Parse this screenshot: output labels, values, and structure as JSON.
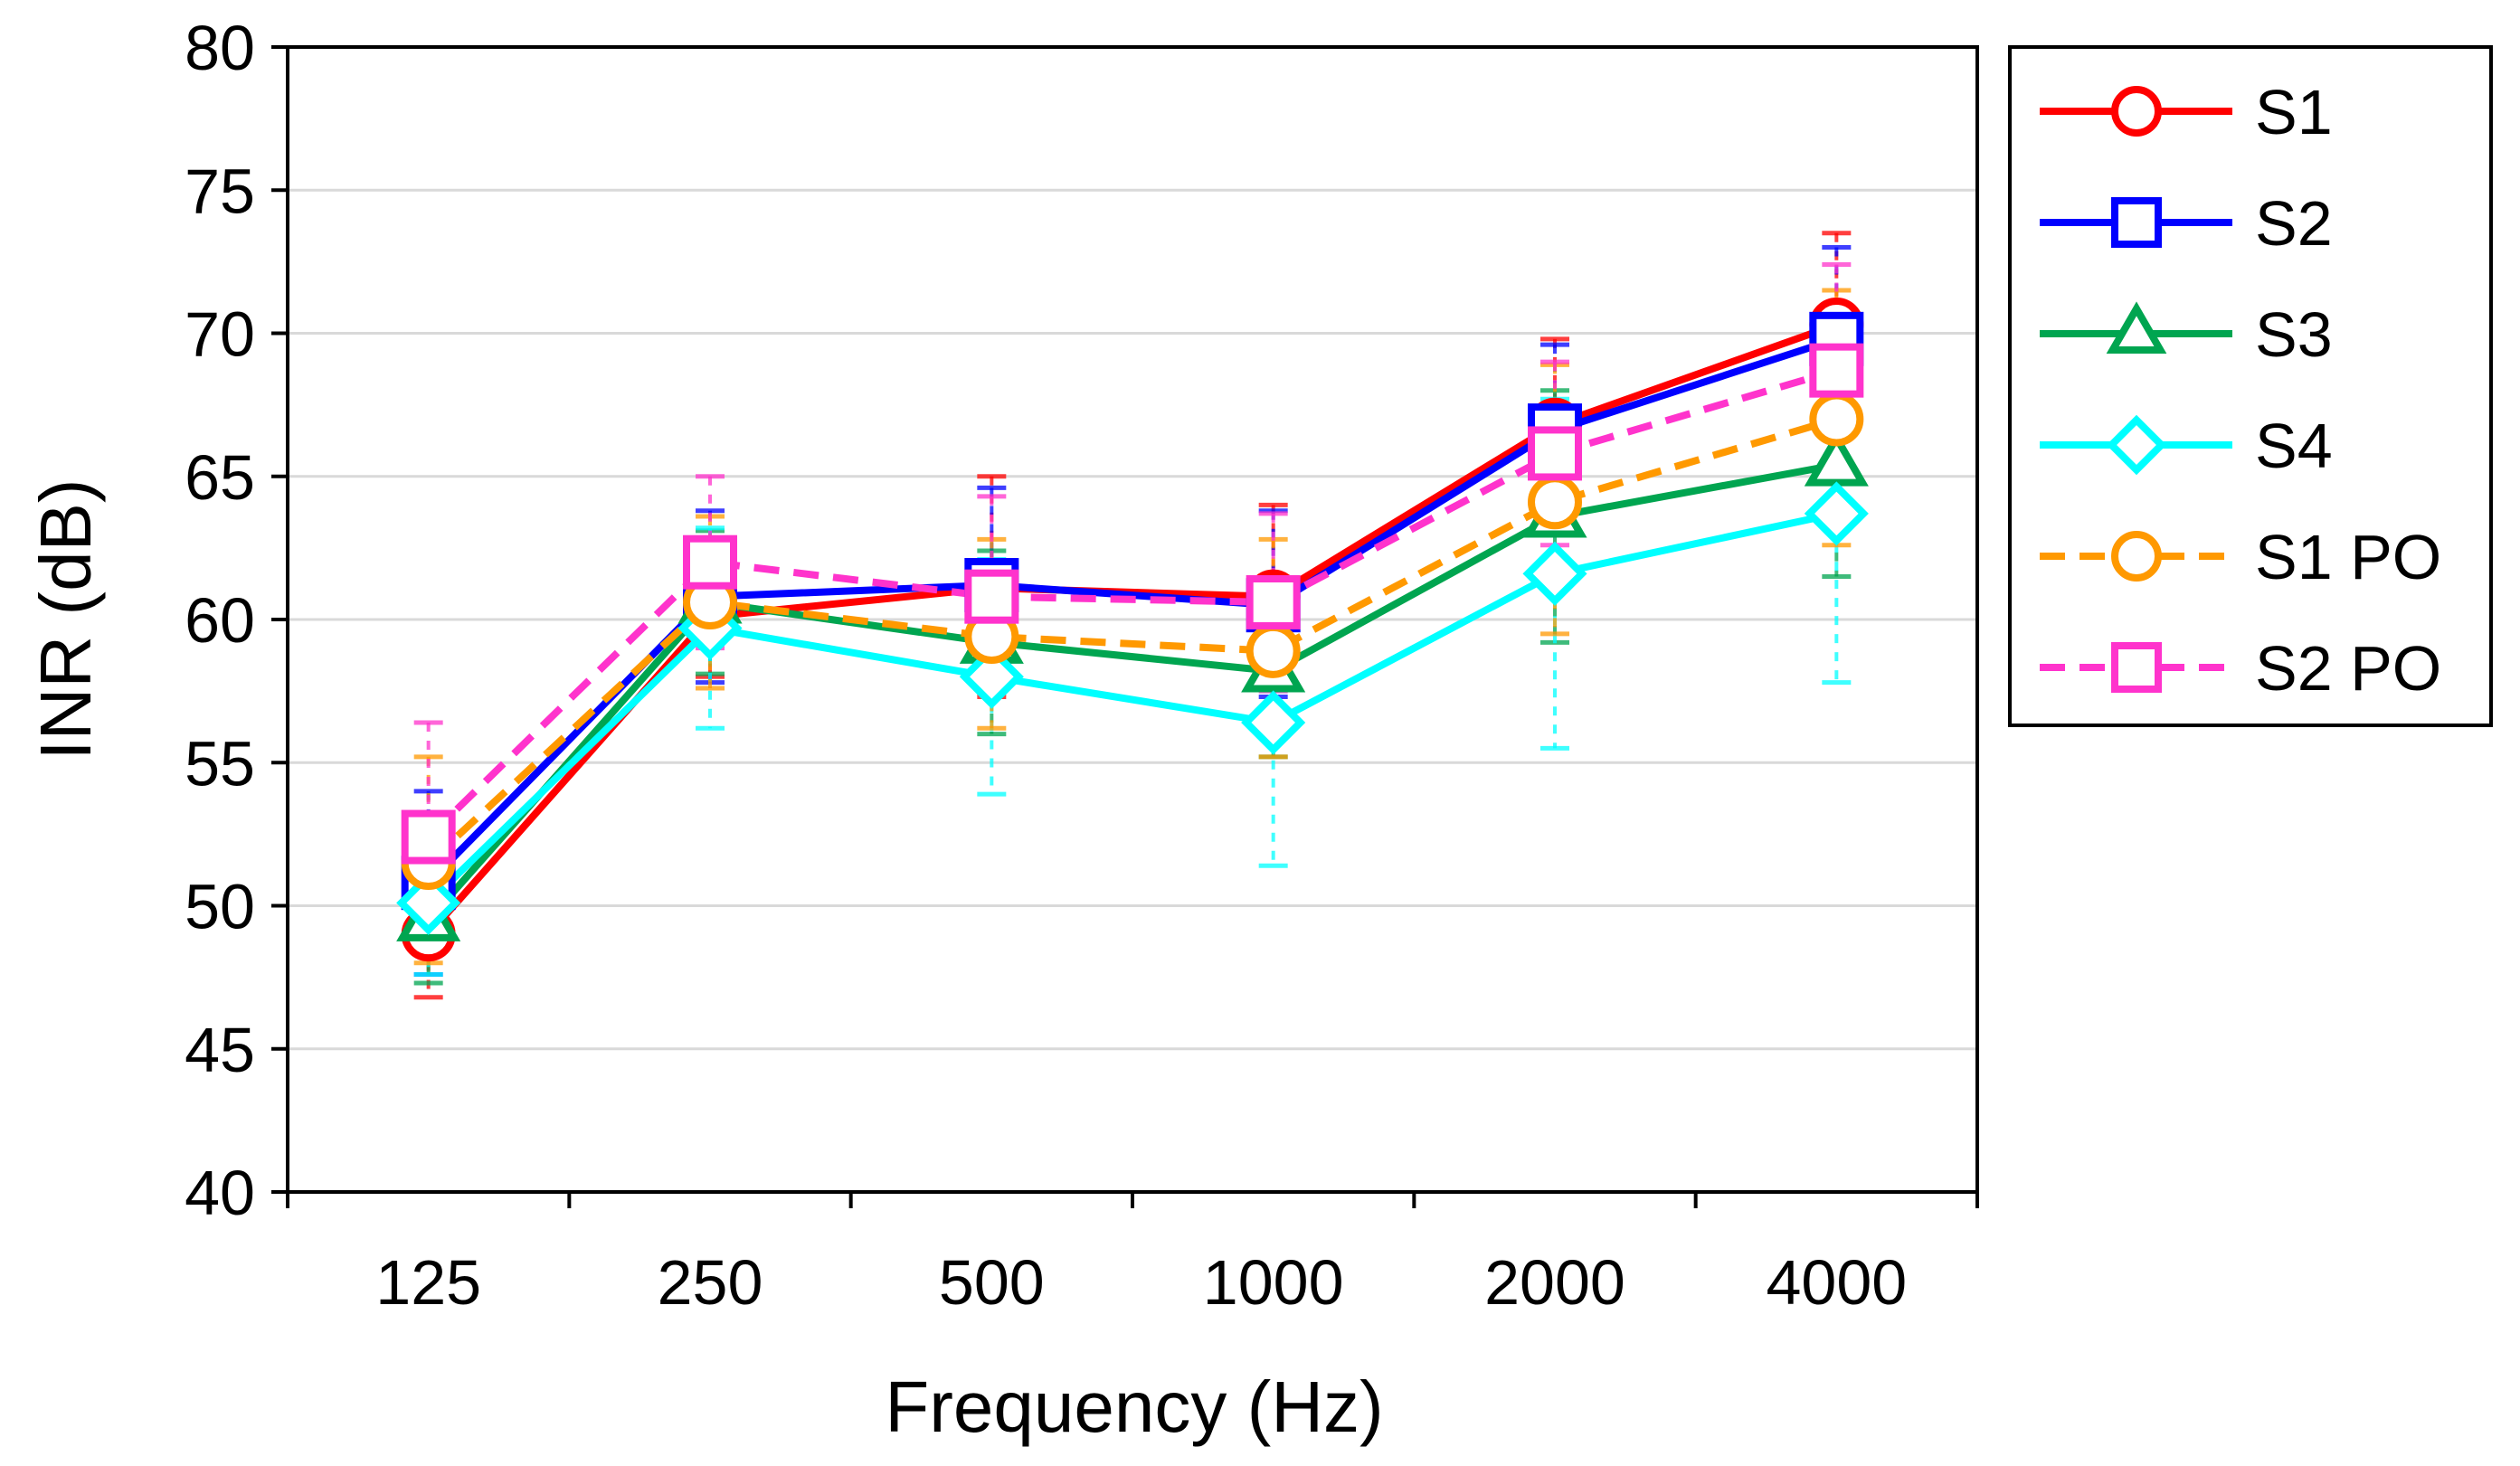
{
  "chart_data": {
    "type": "line",
    "title": "",
    "xlabel": "Frequency (Hz)",
    "ylabel": "INR (dB)",
    "categories": [
      "125",
      "250",
      "500",
      "1000",
      "2000",
      "4000"
    ],
    "ylim": [
      40,
      80
    ],
    "yticks": [
      "40",
      "45",
      "50",
      "55",
      "60",
      "65",
      "70",
      "75",
      "80"
    ],
    "grid": "horizontal",
    "legend_position": "right",
    "series": [
      {
        "name": "S1",
        "color": "#ff0000",
        "dashed": false,
        "marker": "circle",
        "values": [
          49.0,
          60.1,
          61.1,
          60.8,
          66.8,
          70.3
        ],
        "err_low": [
          46.8,
          58.0,
          57.3,
          57.6,
          63.8,
          67.0
        ],
        "err_high": [
          51.2,
          62.2,
          65.0,
          64.0,
          69.8,
          73.5
        ]
      },
      {
        "name": "S2",
        "color": "#0000ff",
        "dashed": false,
        "marker": "square",
        "values": [
          50.8,
          60.8,
          61.2,
          60.5,
          66.6,
          69.8
        ],
        "err_low": [
          47.6,
          57.8,
          57.6,
          57.3,
          63.4,
          66.6
        ],
        "err_high": [
          54.0,
          63.8,
          64.6,
          63.8,
          69.6,
          73.0
        ]
      },
      {
        "name": "S3",
        "color": "#00a550",
        "dashed": false,
        "marker": "triangle",
        "values": [
          49.5,
          60.6,
          59.2,
          58.2,
          63.6,
          65.4
        ],
        "err_low": [
          47.3,
          58.1,
          56.0,
          55.2,
          59.2,
          61.5
        ],
        "err_high": [
          51.7,
          63.1,
          62.4,
          61.2,
          68.0,
          69.3
        ]
      },
      {
        "name": "S4",
        "color": "#00ffff",
        "dashed": false,
        "marker": "diamond",
        "values": [
          50.1,
          59.7,
          58.0,
          56.4,
          61.6,
          63.7
        ],
        "err_low": [
          47.6,
          56.2,
          53.9,
          51.4,
          55.5,
          57.8
        ],
        "err_high": [
          52.6,
          63.2,
          62.1,
          61.4,
          67.7,
          69.6
        ]
      },
      {
        "name": "S1 PO",
        "color": "#ff9900",
        "dashed": true,
        "marker": "circle",
        "values": [
          51.5,
          60.6,
          59.4,
          58.9,
          64.1,
          67.0
        ],
        "err_low": [
          48.0,
          57.6,
          56.2,
          55.2,
          59.5,
          62.6
        ],
        "err_high": [
          55.2,
          63.6,
          62.8,
          62.8,
          68.9,
          71.5
        ]
      },
      {
        "name": "S2 PO",
        "color": "#ff33cc",
        "dashed": true,
        "marker": "square",
        "values": [
          52.4,
          62.0,
          60.8,
          60.6,
          65.8,
          68.7
        ],
        "err_low": [
          48.4,
          59.0,
          57.5,
          57.5,
          62.6,
          65.0
        ],
        "err_high": [
          56.4,
          65.0,
          64.3,
          63.7,
          69.0,
          72.4
        ]
      }
    ]
  }
}
